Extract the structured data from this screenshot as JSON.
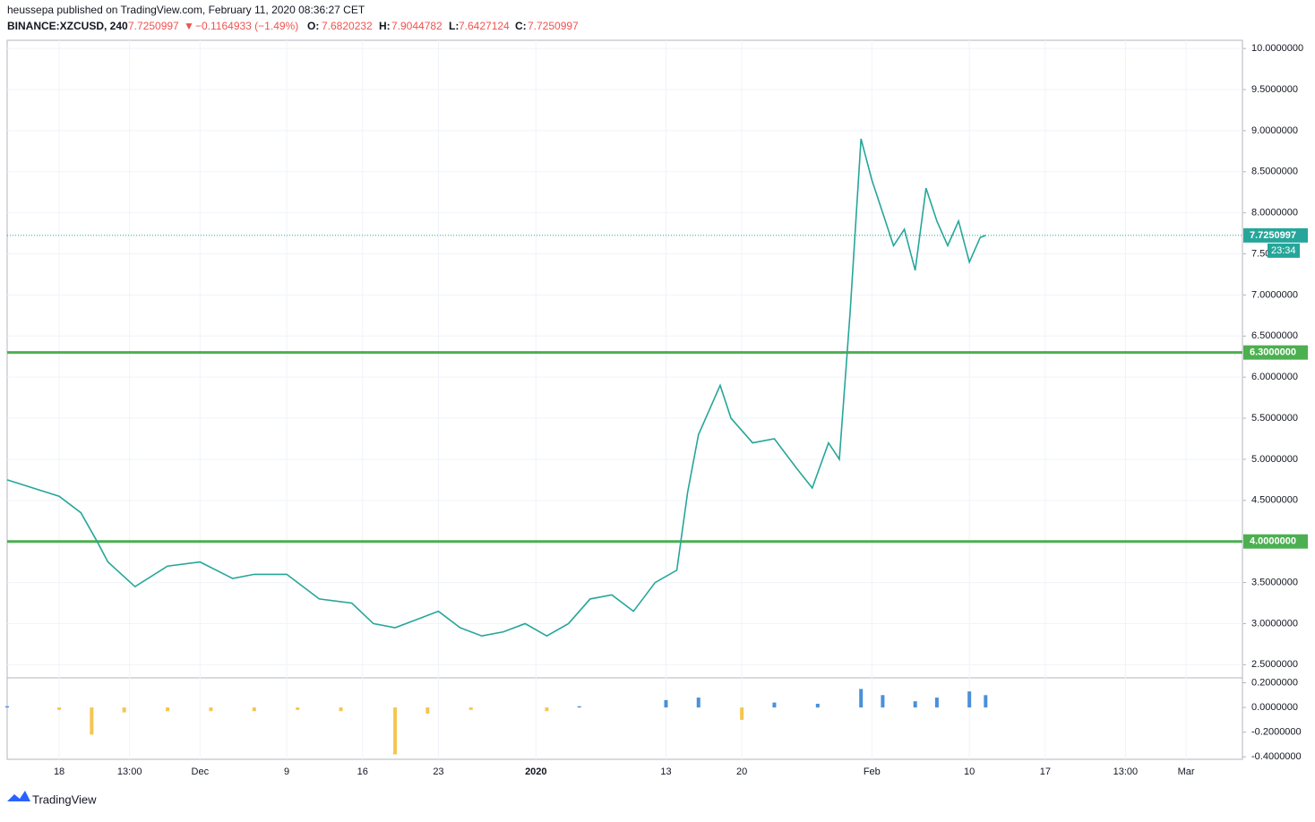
{
  "header": {
    "published": "heussepa published on TradingView.com, February 11, 2020 08:36:27 CET",
    "symbol": "BINANCE:XZCUSD, 240",
    "last": "7.7250997",
    "arrow": "▼",
    "change": "−0.1164933 (−1.49%)",
    "o_label": "O:",
    "o": "7.6820232",
    "h_label": "H:",
    "h": "7.9044782",
    "l_label": "L:",
    "l": "7.6427124",
    "c_label": "C:",
    "c": "7.7250997"
  },
  "footer": {
    "brand": "TradingView"
  },
  "chart_data": [
    {
      "type": "line",
      "xlim": [
        -4.8,
        109.2
      ],
      "xticks": [
        {
          "value": 0,
          "label": "18"
        },
        {
          "value": 6.5,
          "label": "13:00"
        },
        {
          "value": 13,
          "label": "Dec"
        },
        {
          "value": 21,
          "label": "9"
        },
        {
          "value": 28,
          "label": "16"
        },
        {
          "value": 35,
          "label": "23"
        },
        {
          "value": 44,
          "label": "2020"
        },
        {
          "value": 56,
          "label": "13"
        },
        {
          "value": 63,
          "label": "20"
        },
        {
          "value": 75,
          "label": "Feb"
        },
        {
          "value": 84,
          "label": "10"
        },
        {
          "value": 91,
          "label": "17"
        },
        {
          "value": 98.4,
          "label": "13:00"
        },
        {
          "value": 104,
          "label": "Mar"
        }
      ],
      "ylim": [
        2.34,
        10.1
      ],
      "yticks": [
        {
          "value": 10,
          "label": "10.0000000"
        },
        {
          "value": 9.5,
          "label": "9.5000000"
        },
        {
          "value": 9,
          "label": "9.0000000"
        },
        {
          "value": 8.5,
          "label": "8.5000000"
        },
        {
          "value": 8,
          "label": "8.0000000"
        },
        {
          "value": 7.5,
          "label": "7.50"
        },
        {
          "value": 7,
          "label": "7.0000000"
        },
        {
          "value": 6.5,
          "label": "6.5000000"
        },
        {
          "value": 6,
          "label": "6.0000000"
        },
        {
          "value": 5.5,
          "label": "5.5000000"
        },
        {
          "value": 5,
          "label": "5.0000000"
        },
        {
          "value": 4.5,
          "label": "4.5000000"
        },
        {
          "value": 3.5,
          "label": "3.5000000"
        },
        {
          "value": 3,
          "label": "3.0000000"
        },
        {
          "value": 2.5,
          "label": "2.5000000"
        }
      ],
      "grid": true,
      "x": [
        -4.8,
        0,
        2,
        3.5,
        4.5,
        7,
        10,
        13,
        16,
        18,
        21,
        24,
        27,
        29,
        31,
        33,
        35,
        37,
        39,
        41,
        43,
        45,
        47,
        49,
        51,
        53,
        55,
        57,
        58,
        59,
        61,
        62,
        64,
        66,
        68,
        69.5,
        71,
        72,
        73,
        74,
        75,
        76,
        77,
        78,
        79,
        80,
        81,
        82,
        83,
        84,
        85,
        85.5
      ],
      "series": [
        {
          "name": "XZCUSD",
          "color": "#26a69a",
          "values": [
            4.75,
            4.55,
            4.35,
            4.0,
            3.75,
            3.45,
            3.7,
            3.75,
            3.55,
            3.6,
            3.6,
            3.3,
            3.25,
            3.0,
            2.95,
            3.05,
            3.15,
            2.95,
            2.85,
            2.9,
            3.0,
            2.85,
            3.0,
            3.3,
            3.35,
            3.15,
            3.5,
            3.65,
            4.6,
            5.3,
            5.9,
            5.5,
            5.2,
            5.25,
            4.9,
            4.65,
            5.2,
            5.0,
            6.8,
            8.9,
            8.4,
            8.0,
            7.6,
            7.8,
            7.3,
            8.3,
            7.9,
            7.6,
            7.9,
            7.4,
            7.7,
            7.725
          ]
        }
      ],
      "levels": [
        {
          "value": 6.3,
          "label": "6.3000000",
          "color": "#4caf50"
        },
        {
          "value": 4.0,
          "label": "4.0000000",
          "color": "#4caf50"
        }
      ],
      "last_price": {
        "value": 7.7250997,
        "label": "7.7250997",
        "color": "#26a69a"
      },
      "countdown": "23:34"
    },
    {
      "type": "histogram",
      "xlim": [
        -4.8,
        109.2
      ],
      "ylim": [
        -0.42,
        0.24
      ],
      "yticks": [
        {
          "value": 0.2,
          "label": "0.2000000"
        },
        {
          "value": 0,
          "label": "0.0000000"
        },
        {
          "value": -0.2,
          "label": "-0.2000000"
        },
        {
          "value": -0.4,
          "label": "-0.4000000"
        }
      ],
      "x": [
        -4.8,
        0,
        3,
        6,
        10,
        14,
        18,
        22,
        26,
        31,
        34,
        38,
        42,
        45,
        48,
        52,
        56,
        59,
        63,
        66,
        70,
        74,
        76,
        79,
        81,
        84,
        85.5
      ],
      "colors": {
        "positive": "#4a90d9",
        "negative": "#f5c550"
      },
      "values": [
        0.01,
        -0.02,
        -0.22,
        -0.04,
        -0.03,
        -0.03,
        -0.03,
        -0.02,
        -0.03,
        -0.38,
        -0.05,
        -0.02,
        0.0,
        -0.03,
        0.01,
        0.0,
        0.06,
        0.08,
        -0.1,
        0.04,
        0.03,
        0.15,
        0.1,
        0.05,
        0.08,
        0.13,
        0.1
      ]
    }
  ]
}
